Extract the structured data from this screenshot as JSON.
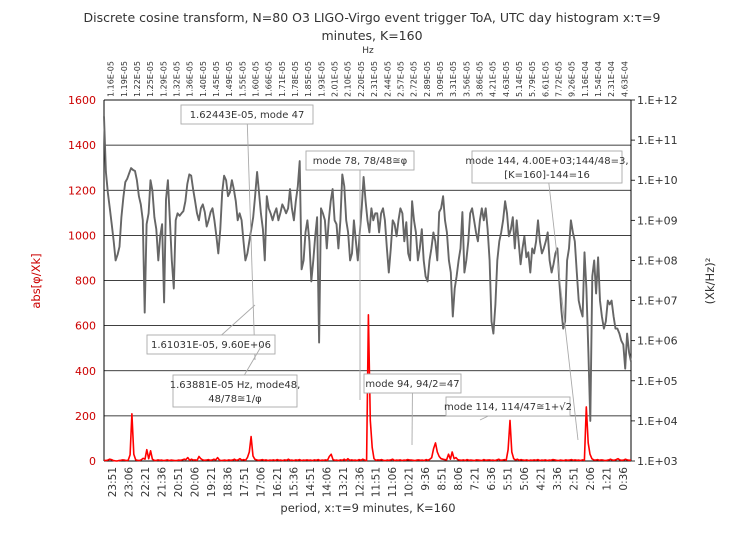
{
  "chart_data": {
    "type": "line",
    "title_line1": "Discrete cosine transform, N=80 O3 LIGO-Virgo event trigger ToA, UTC day histogram x:τ=9",
    "title_line2": "minutes, K=160",
    "top_axis_label": "Hz",
    "xlabel": "period, x:τ=9 minutes, K=160",
    "ylabel_left": "abs[φ/Xk]",
    "ylabel_right": "(Xk/Hz)²",
    "y_left": {
      "min": 0,
      "max": 1600,
      "ticks": [
        0,
        200,
        400,
        600,
        800,
        1000,
        1200,
        1400,
        1600
      ],
      "color": "#cc0000"
    },
    "y_right": {
      "scale": "log",
      "min_exp": 3,
      "max_exp": 12,
      "tick_labels": [
        "1.E+03",
        "1.E+04",
        "1.E+05",
        "1.E+06",
        "1.E+07",
        "1.E+08",
        "1.E+09",
        "1.E+10",
        "1.E+11",
        "1.E+12"
      ]
    },
    "grid": true,
    "bottom_tick_labels": [
      "23:51",
      "23:06",
      "22:21",
      "21:36",
      "20:51",
      "20:06",
      "19:21",
      "18:36",
      "17:51",
      "17:06",
      "16:21",
      "15:36",
      "14:51",
      "14:06",
      "13:21",
      "12:36",
      "11:51",
      "11:06",
      "10:21",
      "9:36",
      "8:51",
      "8:06",
      "7:21",
      "6:36",
      "5:51",
      "5:06",
      "4:21",
      "3:36",
      "2:51",
      "2:06",
      "1:21",
      "0:36"
    ],
    "top_tick_labels": [
      "1.16E-05",
      "1.19E-05",
      "1.22E-05",
      "1.25E-05",
      "1.29E-05",
      "1.32E-05",
      "1.36E-05",
      "1.40E-05",
      "1.45E-05",
      "1.49E-05",
      "1.55E-05",
      "1.60E-05",
      "1.66E-05",
      "1.71E-05",
      "1.78E-05",
      "1.85E-05",
      "1.93E-05",
      "2.01E-05",
      "2.10E-05",
      "2.20E-05",
      "2.31E-05",
      "2.44E-05",
      "2.57E-05",
      "2.72E-05",
      "2.89E-05",
      "3.09E-05",
      "3.31E-05",
      "3.56E-05",
      "3.86E-05",
      "4.21E-05",
      "4.63E-05",
      "5.14E-05",
      "5.79E-05",
      "6.61E-05",
      "7.72E-05",
      "9.26E-05",
      "1.16E-04",
      "1.54E-04",
      "2.31E-04",
      "4.63E-04"
    ],
    "series": [
      {
        "name": "",
        "axis": "left",
        "color": "#ff0000",
        "values": [
          3,
          2,
          4,
          8,
          6,
          2,
          1,
          0,
          2,
          3,
          5,
          4,
          2,
          3,
          28,
          209,
          30,
          5,
          3,
          2,
          5,
          12,
          8,
          50,
          10,
          45,
          8,
          3,
          2,
          5,
          3,
          4,
          2,
          3,
          5,
          2,
          4,
          3,
          2,
          2,
          4,
          3,
          5,
          8,
          6,
          15,
          3,
          8,
          4,
          5,
          3,
          20,
          10,
          5,
          3,
          4,
          6,
          3,
          4,
          8,
          5,
          15,
          4,
          2,
          3,
          4,
          2,
          5,
          3,
          4,
          8,
          3,
          5,
          10,
          4,
          6,
          3,
          15,
          40,
          108,
          22,
          8,
          5,
          3,
          4,
          6,
          3,
          5,
          2,
          4,
          3,
          5,
          2,
          6,
          3,
          4,
          2,
          5,
          3,
          8,
          3,
          4,
          2,
          5,
          3,
          6,
          2,
          4,
          3,
          5,
          3,
          4,
          2,
          5,
          3,
          6,
          2,
          4,
          3,
          5,
          3,
          20,
          30,
          6,
          3,
          4,
          2,
          5,
          3,
          8,
          2,
          10,
          3,
          5,
          3,
          4,
          2,
          6,
          3,
          8,
          4,
          2,
          648,
          180,
          60,
          10,
          3,
          5,
          4,
          6,
          3,
          2,
          4,
          3,
          5,
          8,
          2,
          4,
          3,
          5,
          2,
          4,
          3,
          6,
          5,
          4,
          3,
          2,
          4,
          5,
          3,
          4,
          2,
          6,
          3,
          8,
          15,
          55,
          80,
          40,
          20,
          10,
          8,
          6,
          5,
          30,
          8,
          40,
          10,
          15,
          6,
          4,
          3,
          5,
          2,
          6,
          3,
          4,
          3,
          2,
          5,
          4,
          3,
          2,
          6,
          3,
          4,
          5,
          3,
          4,
          2,
          5,
          8,
          3,
          4,
          6,
          3,
          50,
          180,
          40,
          10,
          5,
          8,
          3,
          6,
          4,
          3,
          5,
          2,
          4,
          3,
          5,
          3,
          6,
          2,
          4,
          3,
          5,
          2,
          4,
          3,
          6,
          5,
          3,
          2,
          4,
          3,
          2,
          5,
          3,
          4,
          6,
          3,
          5,
          3,
          4,
          2,
          5,
          3,
          240,
          80,
          30,
          10,
          5,
          4,
          6,
          3,
          5,
          4,
          2,
          3,
          5,
          8,
          4,
          3,
          6,
          10,
          5,
          3,
          4,
          8,
          5,
          3,
          4
        ]
      },
      {
        "name": "",
        "axis": "right",
        "color": "#666666",
        "values": [
          390000000000.0,
          16000000000.0,
          4800000000.0,
          2000000000.0,
          770000000.0,
          300000000.0,
          100000000.0,
          140000000.0,
          220000000.0,
          1200000000.0,
          3800000000.0,
          9000000000.0,
          11000000000.0,
          15000000000.0,
          20000000000.0,
          18000000000.0,
          17000000000.0,
          10000000000.0,
          4000000000.0,
          2500000000.0,
          1000000000.0,
          5000000.0,
          800000000.0,
          1500000000.0,
          10000000000.0,
          5500000000.0,
          1200000000.0,
          600000000.0,
          100000000.0,
          400000000.0,
          800000000.0,
          9000000.0,
          3300000000.0,
          10000000000.0,
          1000000000.0,
          100000000.0,
          20000000.0,
          1000000000.0,
          1500000000.0,
          1300000000.0,
          1500000000.0,
          1700000000.0,
          3000000000.0,
          8000000000.0,
          14000000000.0,
          13000000000.0,
          6000000000.0,
          3000000000.0,
          1500000000.0,
          1000000000.0,
          2000000000.0,
          2500000000.0,
          1600000000.0,
          700000000.0,
          1000000000.0,
          1600000000.0,
          2000000000.0,
          1000000000.0,
          400000000.0,
          150000000.0,
          600000000.0,
          5000000000.0,
          13000000000.0,
          10000000000.0,
          4000000000.0,
          5000000000.0,
          10000000000.0,
          6000000000.0,
          3000000000.0,
          1000000000.0,
          1500000000.0,
          1000000000.0,
          300000000.0,
          100000000.0,
          150000000.0,
          300000000.0,
          600000000.0,
          1200000000.0,
          4000000000.0,
          16000000000.0,
          5000000000.0,
          1500000000.0,
          600000000.0,
          100000000.0,
          4000000000.0,
          2000000000.0,
          1500000000.0,
          1000000000.0,
          1500000000.0,
          2000000000.0,
          1000000000.0,
          1500000000.0,
          2500000000.0,
          2000000000.0,
          1500000000.0,
          2000000000.0,
          6000000000.0,
          2000000000.0,
          1000000000.0,
          3000000000.0,
          7000000000.0,
          30000000000.0,
          60000000.0,
          100000000.0,
          500000000.0,
          1000000000.0,
          300000000.0,
          30000000.0,
          100000000.0,
          400000000.0,
          1200000000.0,
          900000.0,
          2000000000.0,
          1500000000.0,
          1000000000.0,
          200000000.0,
          1000000000.0,
          3000000000.0,
          6000000000.0,
          1000000000.0,
          800000000.0,
          200000000.0,
          1000000000.0,
          14000000000.0,
          7000000000.0,
          1000000000.0,
          500000000.0,
          100000000.0,
          150000000.0,
          1000000000.0,
          300000000.0,
          100000000.0,
          500000000.0,
          2000000000.0,
          12000000000.0,
          3000000000.0,
          1000000000.0,
          500000000.0,
          2000000000.0,
          1000000000.0,
          1500000000.0,
          1500000000.0,
          500000000.0,
          1500000000.0,
          2000000000.0,
          1000000000.0,
          200000000.0,
          50000000.0,
          200000000.0,
          1000000000.0,
          800000000.0,
          400000000.0,
          1000000000.0,
          2000000000.0,
          1500000000.0,
          300000000.0,
          900000000.0,
          150000000.0,
          100000000.0,
          3000000000.0,
          1000000000.0,
          500000000.0,
          100000000.0,
          200000000.0,
          600000000.0,
          100000000.0,
          40000000.0,
          30000000.0,
          100000000.0,
          200000000.0,
          500000000.0,
          300000000.0,
          100000000.0,
          1600000000.0,
          2000000000.0,
          4000000000.0,
          1000000000.0,
          500000000.0,
          100000000.0,
          50000000.0,
          4000000.0,
          20000000.0,
          40000000.0,
          100000000.0,
          200000000.0,
          1600000000.0,
          50000000.0,
          100000000.0,
          300000000.0,
          1500000000.0,
          2000000000.0,
          1000000000.0,
          500000000.0,
          300000000.0,
          1000000000.0,
          2000000000.0,
          1000000000.0,
          2000000000.0,
          600000000.0,
          100000000.0,
          3000000.0,
          1500000.0,
          8000000.0,
          100000000.0,
          300000000.0,
          500000000.0,
          1000000000.0,
          3000000000.0,
          1500000000.0,
          400000000.0,
          600000000.0,
          1200000000.0,
          200000000.0,
          1000000000.0,
          300000000.0,
          80000000.0,
          200000000.0,
          400000000.0,
          120000000.0,
          160000000.0,
          50000000.0,
          200000000.0,
          150000000.0,
          300000000.0,
          1000000000.0,
          300000000.0,
          150000000.0,
          200000000.0,
          300000000.0,
          500000000.0,
          100000000.0,
          50000000.0,
          80000000.0,
          150000000.0,
          200000000.0,
          30000000.0,
          6000000.0,
          2000000.0,
          3000000.0,
          100000000.0,
          200000000.0,
          1000000000.0,
          500000000.0,
          300000000.0,
          50000000.0,
          10000000.0,
          6000000.0,
          4000000.0,
          160000000.0,
          20000000.0,
          500000.0,
          10000.0,
          40000000.0,
          100000000.0,
          15000000.0,
          120000000.0,
          10000000.0,
          4000000.0,
          2000000.0,
          3000000.0,
          10000000.0,
          8000000.0,
          10000000.0,
          4000000.0,
          2000000.0,
          2000000.0,
          1500000.0,
          1000000.0,
          800000.0,
          200000.0,
          1500000.0,
          500000.0,
          300000.0
        ]
      }
    ],
    "annotations": [
      {
        "text": "1.62443E-05, mode 47"
      },
      {
        "text": "mode 78, 78/48≅φ"
      },
      {
        "text": "mode 144, 4.00E+03;144/48=3,"
      },
      {
        "text": "[K=160]-144=16"
      },
      {
        "text": "1.61031E-05, 9.60E+06"
      },
      {
        "text": "1.63881E-05 Hz, mode48,"
      },
      {
        "text": "48/78≅1/φ"
      },
      {
        "text": "mode 94, 94/2=47"
      },
      {
        "text": "mode 114, 114/47≅1+√2"
      }
    ]
  }
}
